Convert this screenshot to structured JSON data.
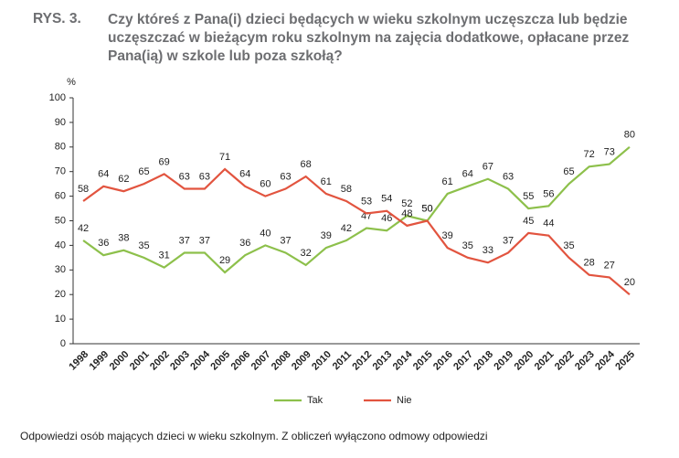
{
  "chart_data": {
    "type": "line",
    "figure_label": "RYS. 3.",
    "title": "Czy któreś z Pana(i) dzieci będących w wieku szkolnym uczęszcza lub będzie uczęszczać w bieżącym roku szkolnym na zajęcia dodatkowe, opłacane przez Pana(ią) w szkole lub poza szkołą?",
    "y_label": "%",
    "categories": [
      "1998",
      "1999",
      "2000",
      "2001",
      "2002",
      "2003",
      "2004",
      "2005",
      "2006",
      "2007",
      "2008",
      "2009",
      "2010",
      "2011",
      "2012",
      "2013",
      "2014",
      "2015",
      "2016",
      "2017",
      "2018",
      "2019",
      "2020",
      "2021",
      "2022",
      "2023",
      "2024",
      "2025"
    ],
    "series": [
      {
        "name": "Tak",
        "color": "#8dc04b",
        "values": [
          42,
          36,
          38,
          35,
          31,
          37,
          37,
          29,
          36,
          40,
          37,
          32,
          39,
          42,
          47,
          46,
          52,
          50,
          61,
          64,
          67,
          63,
          55,
          56,
          65,
          72,
          73,
          80
        ]
      },
      {
        "name": "Nie",
        "color": "#e2543f",
        "values": [
          58,
          64,
          62,
          65,
          69,
          63,
          63,
          71,
          64,
          60,
          63,
          68,
          61,
          58,
          53,
          54,
          48,
          50,
          39,
          35,
          33,
          37,
          45,
          44,
          35,
          28,
          27,
          20
        ]
      }
    ],
    "ylim": [
      0,
      100
    ],
    "yticks": [
      0,
      10,
      20,
      30,
      40,
      50,
      60,
      70,
      80,
      90,
      100
    ],
    "footnote": "Odpowiedzi osób mających dzieci w wieku szkolnym. Z obliczeń wyłączono odmowy odpowiedzi"
  }
}
